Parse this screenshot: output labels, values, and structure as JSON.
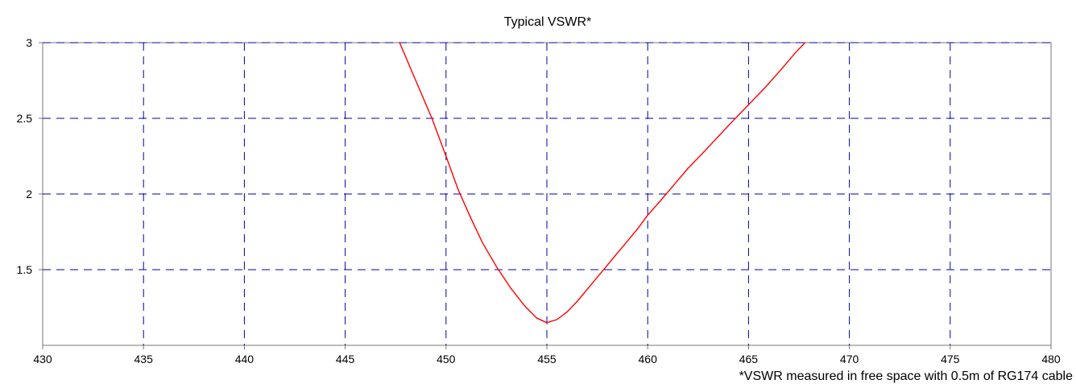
{
  "chart_data": {
    "type": "line",
    "title": "Typical VSWR*",
    "footnote": "*VSWR measured  in free space with 0.5m of RG174 cable",
    "xlabel": "",
    "ylabel": "",
    "xlim": [
      430,
      480
    ],
    "ylim": [
      1.0,
      3.0
    ],
    "x_ticks": [
      430,
      435,
      440,
      445,
      450,
      455,
      460,
      465,
      470,
      475,
      480
    ],
    "x_tick_labels": [
      "430",
      "435",
      "440",
      "445",
      "450",
      "455",
      "460",
      "465",
      "470",
      "475",
      "480"
    ],
    "y_ticks": [
      1.5,
      2.0,
      2.5,
      3.0
    ],
    "y_tick_labels": [
      "1.5",
      "2",
      "2.5",
      "3"
    ],
    "grid": true,
    "legend": "none",
    "series": [
      {
        "color": "#ff0000",
        "x": [
          447.7,
          448.5,
          449.3,
          450.0,
          450.6,
          451.2,
          451.8,
          452.5,
          453.2,
          453.9,
          454.5,
          455.0,
          455.5,
          456.0,
          456.5,
          457.0,
          457.5,
          458.0,
          458.5,
          459.0,
          459.5,
          460.0,
          460.6,
          461.3,
          462.0,
          462.8,
          463.5,
          464.2,
          465.0,
          465.8,
          466.6,
          467.3,
          467.8
        ],
        "y": [
          3.0,
          2.75,
          2.5,
          2.25,
          2.03,
          1.85,
          1.68,
          1.52,
          1.38,
          1.26,
          1.18,
          1.15,
          1.17,
          1.22,
          1.29,
          1.37,
          1.45,
          1.53,
          1.61,
          1.69,
          1.77,
          1.86,
          1.95,
          2.06,
          2.17,
          2.28,
          2.38,
          2.48,
          2.59,
          2.7,
          2.82,
          2.93,
          3.0
        ]
      }
    ]
  }
}
